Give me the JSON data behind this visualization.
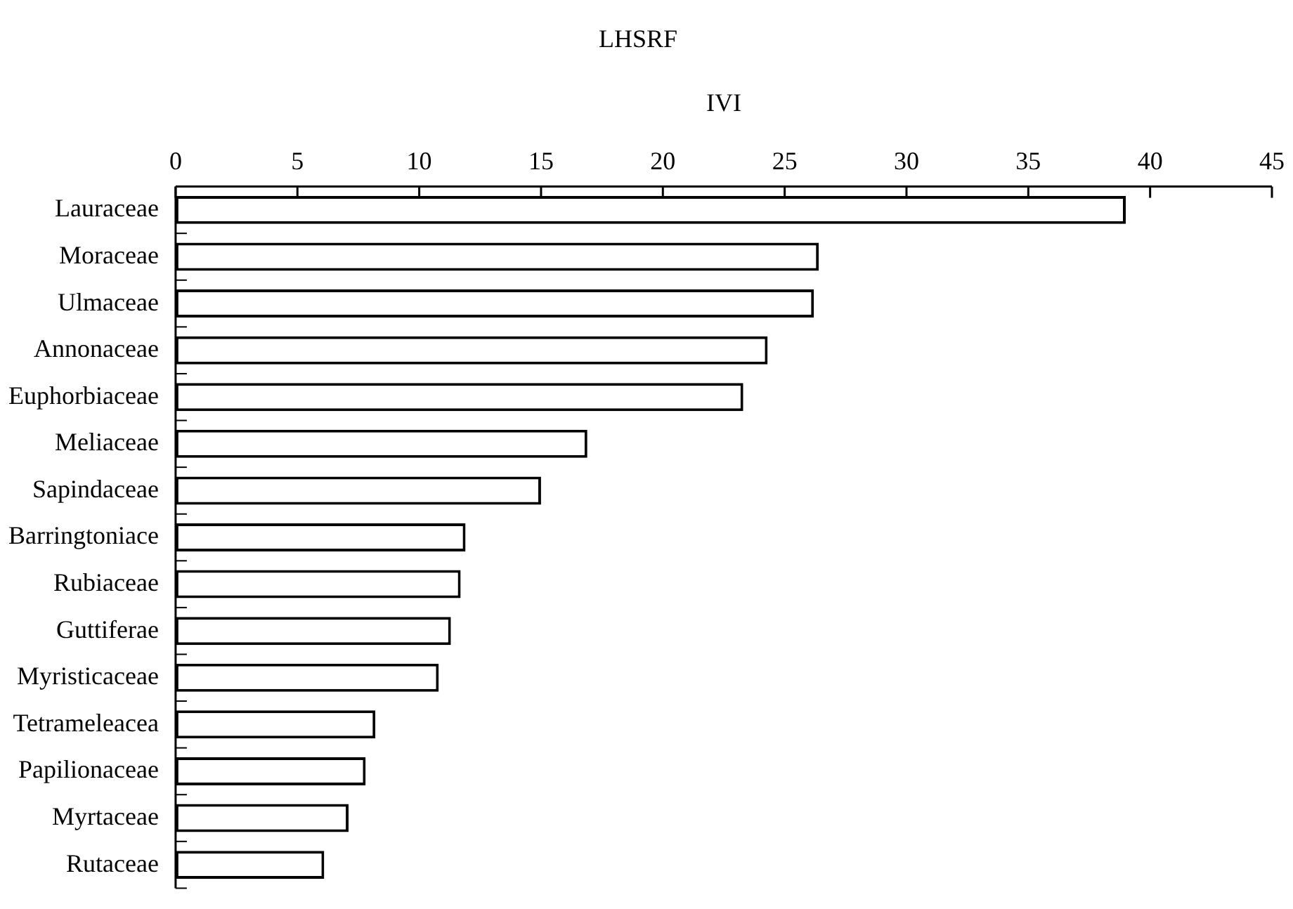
{
  "chart_data": {
    "type": "bar",
    "orientation": "horizontal",
    "title": "LHSRF",
    "xlabel": "IVI",
    "categories": [
      "Lauraceae",
      "Moraceae",
      "Ulmaceae",
      "Annonaceae",
      "Euphorbiaceae",
      "Meliaceae",
      "Sapindaceae",
      "Barringtoniace",
      "Rubiaceae",
      "Guttiferae",
      "Myristicaceae",
      "Tetrameleacea",
      "Papilionaceae",
      "Myrtaceae",
      "Rutaceae"
    ],
    "values": [
      39.0,
      26.4,
      26.2,
      24.3,
      23.3,
      16.9,
      15.0,
      11.9,
      11.7,
      11.3,
      10.8,
      8.2,
      7.8,
      7.1,
      6.1
    ],
    "color": "#ffffff",
    "xlim": [
      0,
      45
    ],
    "xticks": [
      0,
      5,
      10,
      15,
      20,
      25,
      30,
      35,
      40,
      45
    ],
    "grid": false,
    "legend": false
  }
}
